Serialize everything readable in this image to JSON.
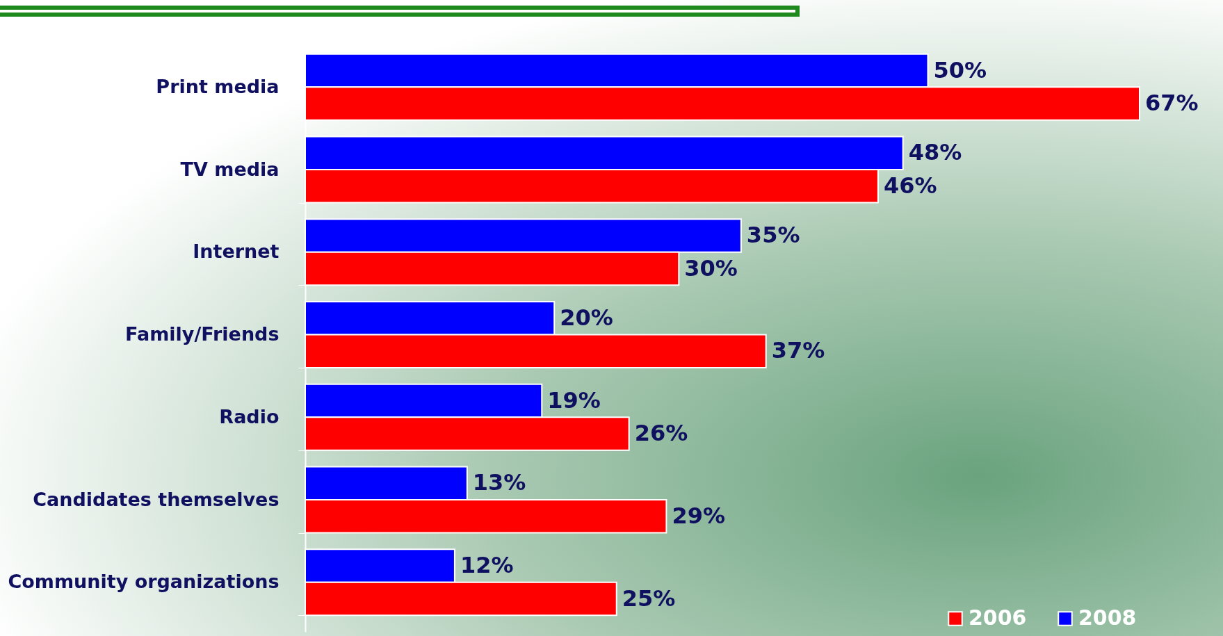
{
  "chart_data": {
    "type": "bar",
    "orientation": "horizontal",
    "categories": [
      "Print media",
      "TV media",
      "Internet",
      "Family/Friends",
      "Radio",
      "Candidates themselves",
      "Community organizations"
    ],
    "series": [
      {
        "name": "2008",
        "color": "#0000ff",
        "values": [
          50,
          48,
          35,
          20,
          19,
          13,
          12
        ],
        "value_labels": [
          "50%",
          "48%",
          "35%",
          "20%",
          "19%",
          "13%",
          "12%"
        ]
      },
      {
        "name": "2006",
        "color": "#ff0000",
        "values": [
          67,
          46,
          30,
          37,
          26,
          29,
          25
        ],
        "value_labels": [
          "67%",
          "46%",
          "30%",
          "37%",
          "26%",
          "29%",
          "25%"
        ]
      }
    ],
    "legend": "bottom right"
  }
}
